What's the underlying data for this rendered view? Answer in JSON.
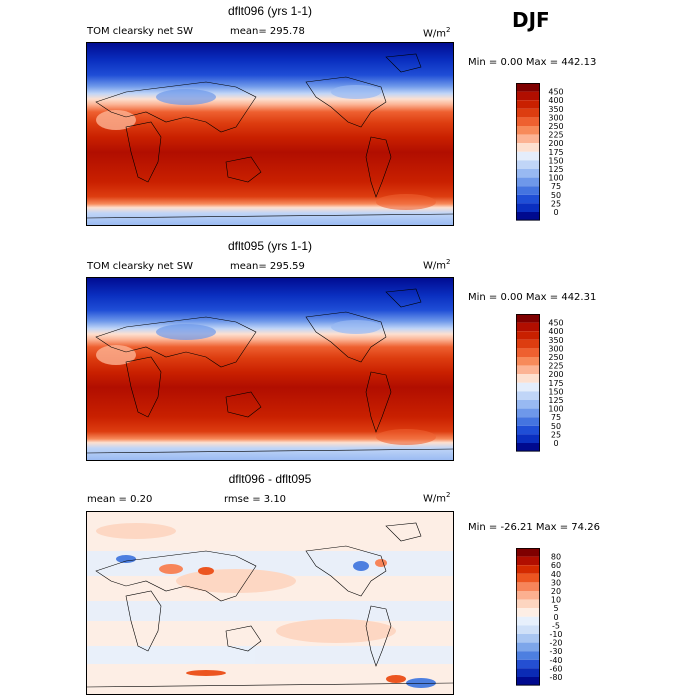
{
  "season": "DJF",
  "chart_data": [
    {
      "type": "heatmap",
      "title": "dflt096 (yrs 1-1)",
      "variable": "TOM clearsky net SW",
      "mean_text": "mean= 295.78",
      "units": "W/m",
      "units_sup": "2",
      "minmax_text": "Min =    0.00 Max = 442.13",
      "colorbar": {
        "levels": [
          "450",
          "400",
          "350",
          "300",
          "250",
          "225",
          "200",
          "175",
          "150",
          "125",
          "100",
          "75",
          "50",
          "25",
          "0"
        ],
        "colors": [
          "#7f0000",
          "#b10e00",
          "#c92000",
          "#dd3d10",
          "#ee6030",
          "#f78a5a",
          "#fcb394",
          "#fde0d0",
          "#e4edfb",
          "#c0d5f7",
          "#98b9f2",
          "#6e98ea",
          "#4474e0",
          "#1f4ed6",
          "#0a2fc0",
          "#000a8f"
        ]
      }
    },
    {
      "type": "heatmap",
      "title": "dflt095 (yrs 1-1)",
      "variable": "TOM clearsky net SW",
      "mean_text": "mean= 295.59",
      "units": "W/m",
      "units_sup": "2",
      "minmax_text": "Min =    0.00 Max = 442.31",
      "colorbar": {
        "levels": [
          "450",
          "400",
          "350",
          "300",
          "250",
          "225",
          "200",
          "175",
          "150",
          "125",
          "100",
          "75",
          "50",
          "25",
          "0"
        ],
        "colors": [
          "#7f0000",
          "#b10e00",
          "#c92000",
          "#dd3d10",
          "#ee6030",
          "#f78a5a",
          "#fcb394",
          "#fde0d0",
          "#e4edfb",
          "#c0d5f7",
          "#98b9f2",
          "#6e98ea",
          "#4474e0",
          "#1f4ed6",
          "#0a2fc0",
          "#000a8f"
        ]
      }
    },
    {
      "type": "heatmap",
      "title": "dflt096 - dflt095",
      "mean_text": "mean =    0.20",
      "rmse_text": "rmse =    3.10",
      "units": "W/m",
      "units_sup": "2",
      "minmax_text": "Min = -26.21 Max =  74.26",
      "colorbar": {
        "levels": [
          "80",
          "60",
          "40",
          "30",
          "20",
          "10",
          "5",
          "0",
          "-5",
          "-10",
          "-20",
          "-30",
          "-40",
          "-60",
          "-80"
        ],
        "colors": [
          "#7f0000",
          "#b10e00",
          "#d42a00",
          "#ec5520",
          "#f7855a",
          "#fcb090",
          "#fdd5c0",
          "#fdeee5",
          "#e7f0fc",
          "#cfe0f8",
          "#a9c6f2",
          "#7da6ea",
          "#4d7fe0",
          "#244fd2",
          "#0b2bb5",
          "#000a8f"
        ]
      }
    }
  ]
}
